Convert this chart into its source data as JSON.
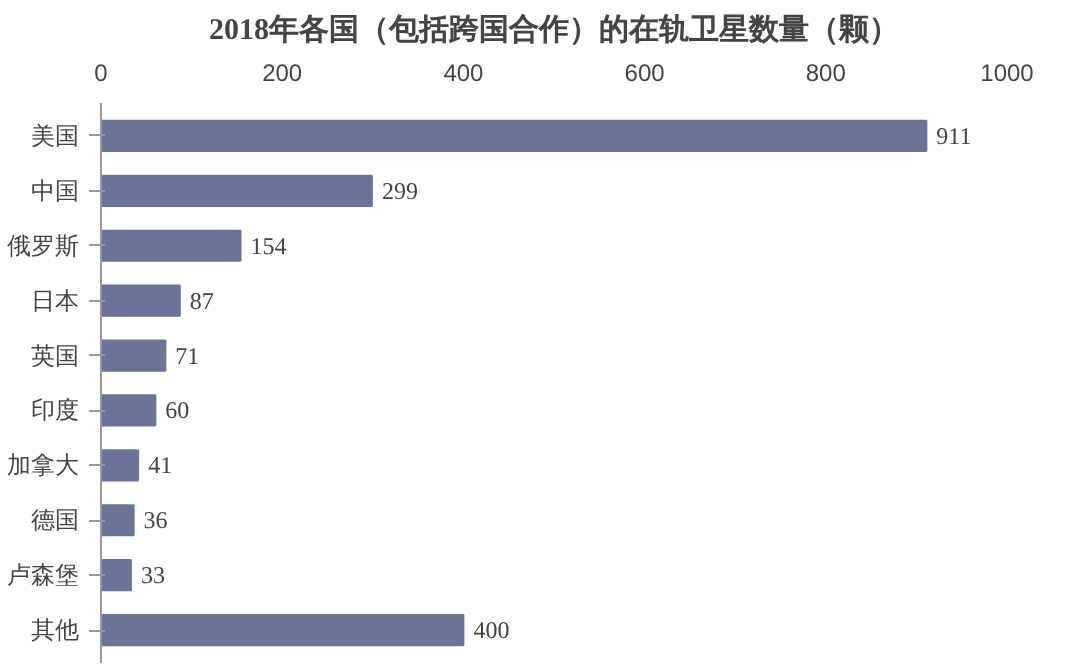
{
  "chart_data": {
    "type": "bar",
    "orientation": "horizontal",
    "title": "2018年各国（包括跨国合作）的在轨卫星数量（颗）",
    "categories": [
      "美国",
      "中国",
      "俄罗斯",
      "日本",
      "英国",
      "印度",
      "加拿大",
      "德国",
      "卢森堡",
      "其他"
    ],
    "values": [
      911,
      299,
      154,
      87,
      71,
      60,
      41,
      36,
      33,
      400
    ],
    "color": "#6b7399",
    "xlim": [
      0,
      1000
    ],
    "xticks": [
      0,
      200,
      400,
      600,
      800,
      1000
    ],
    "data_labels": true,
    "grid": false
  }
}
